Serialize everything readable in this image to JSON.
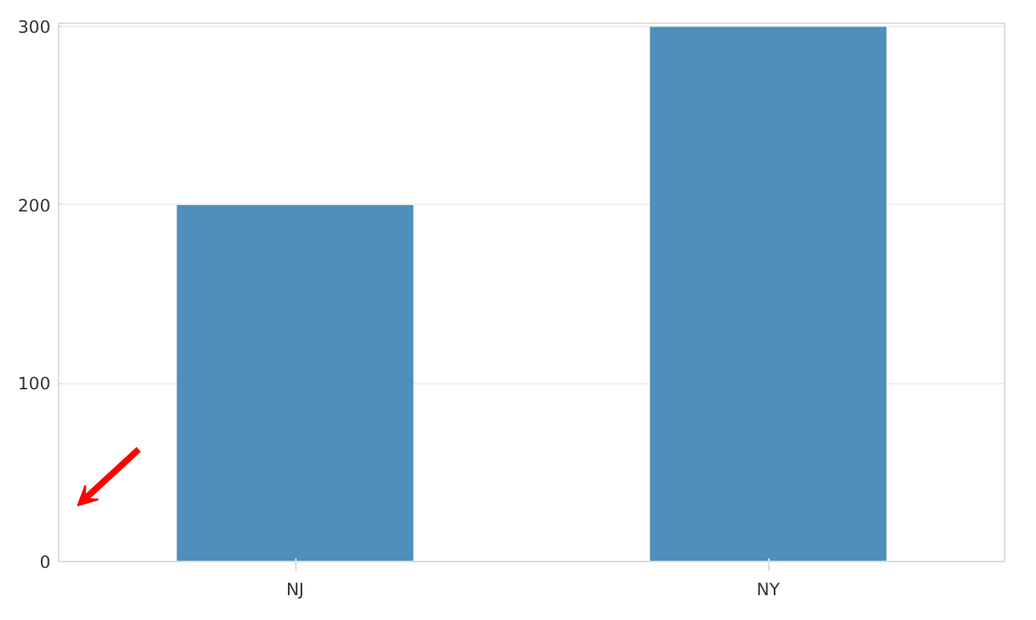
{
  "chart_data": {
    "type": "bar",
    "categories": [
      "NJ",
      "NY"
    ],
    "values": [
      200,
      300
    ],
    "color": "#4f8fbb",
    "ylim": [
      0,
      302
    ],
    "yticks": [
      0,
      100,
      200,
      300
    ],
    "grid": "y"
  }
}
